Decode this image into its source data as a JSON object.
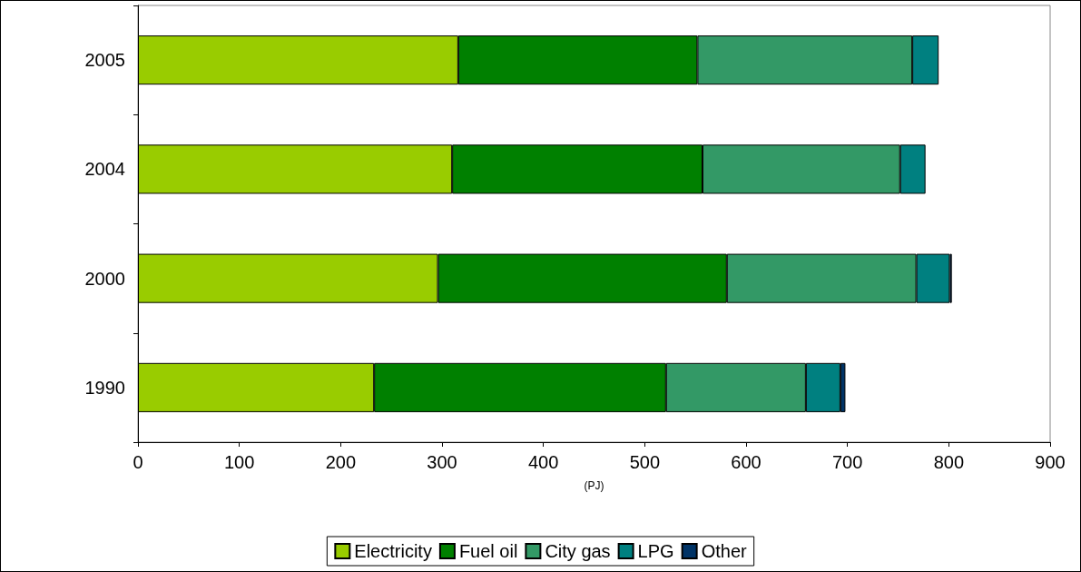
{
  "chart_data": {
    "type": "bar",
    "orientation": "horizontal",
    "stacked": true,
    "xlabel": "(PJ)",
    "categories": [
      "2005",
      "2004",
      "2000",
      "1990"
    ],
    "series": [
      {
        "name": "Electricity",
        "color": "#99cc00",
        "values": [
          316,
          310,
          296,
          233
        ]
      },
      {
        "name": "Fuel oil",
        "color": "#008000",
        "values": [
          236,
          247,
          285,
          288
        ]
      },
      {
        "name": "City gas",
        "color": "#339966",
        "values": [
          212,
          195,
          187,
          138
        ]
      },
      {
        "name": "LPG",
        "color": "#008080",
        "values": [
          26,
          25,
          33,
          34
        ]
      },
      {
        "name": "Other",
        "color": "#003366",
        "values": [
          null,
          null,
          2,
          5
        ]
      }
    ],
    "xlim": [
      0,
      900
    ],
    "xticks": [
      0,
      100,
      200,
      300,
      400,
      500,
      600,
      700,
      800,
      900
    ],
    "grid": false,
    "legend": "bottom"
  }
}
